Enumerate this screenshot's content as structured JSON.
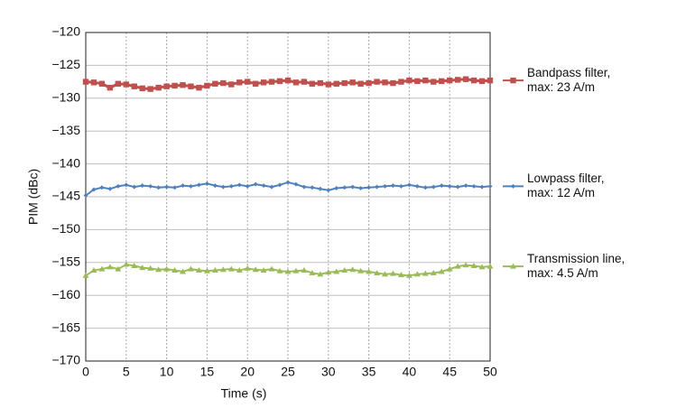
{
  "chart_data": {
    "type": "line",
    "x_label": "Time (s)",
    "y_label": "PIM (dBc)",
    "x": [
      0,
      1,
      2,
      3,
      4,
      5,
      6,
      7,
      8,
      9,
      10,
      11,
      12,
      13,
      14,
      15,
      16,
      17,
      18,
      19,
      20,
      21,
      22,
      23,
      24,
      25,
      26,
      27,
      28,
      29,
      30,
      31,
      32,
      33,
      34,
      35,
      36,
      37,
      38,
      39,
      40,
      41,
      42,
      43,
      44,
      45,
      46,
      47,
      48,
      49,
      50
    ],
    "series": [
      {
        "name": "Bandpass filter, max: 23 A/m",
        "color": "#c0504d",
        "marker": "square",
        "values": [
          -127.5,
          -127.6,
          -127.8,
          -128.4,
          -127.8,
          -127.9,
          -128.2,
          -128.5,
          -128.6,
          -128.4,
          -128.2,
          -128.1,
          -128.0,
          -128.2,
          -128.4,
          -128.1,
          -127.8,
          -127.7,
          -127.9,
          -127.6,
          -127.5,
          -127.8,
          -127.6,
          -127.5,
          -127.4,
          -127.3,
          -127.6,
          -127.5,
          -127.8,
          -127.7,
          -127.9,
          -127.8,
          -127.7,
          -127.6,
          -127.8,
          -127.7,
          -127.5,
          -127.6,
          -127.7,
          -127.5,
          -127.3,
          -127.4,
          -127.3,
          -127.5,
          -127.4,
          -127.3,
          -127.2,
          -127.1,
          -127.3,
          -127.4,
          -127.3
        ]
      },
      {
        "name": "Lowpass filter, max: 12 A/m",
        "color": "#4f81bd",
        "marker": "diamond",
        "values": [
          -144.8,
          -143.9,
          -143.6,
          -143.8,
          -143.4,
          -143.2,
          -143.5,
          -143.3,
          -143.4,
          -143.6,
          -143.5,
          -143.6,
          -143.3,
          -143.4,
          -143.2,
          -143.0,
          -143.3,
          -143.5,
          -143.4,
          -143.2,
          -143.4,
          -143.1,
          -143.3,
          -143.5,
          -143.2,
          -142.8,
          -143.1,
          -143.5,
          -143.6,
          -143.8,
          -144.0,
          -143.7,
          -143.6,
          -143.5,
          -143.7,
          -143.6,
          -143.5,
          -143.4,
          -143.3,
          -143.4,
          -143.2,
          -143.4,
          -143.6,
          -143.5,
          -143.3,
          -143.4,
          -143.5,
          -143.3,
          -143.4,
          -143.5,
          -143.4
        ]
      },
      {
        "name": "Transmission line, max: 4.5 A/m",
        "color": "#9bbb59",
        "marker": "triangle",
        "values": [
          -157.0,
          -156.2,
          -156.0,
          -155.7,
          -156.0,
          -155.3,
          -155.5,
          -155.8,
          -155.9,
          -156.1,
          -156.0,
          -156.2,
          -156.4,
          -156.0,
          -156.2,
          -156.3,
          -156.2,
          -156.1,
          -156.0,
          -156.2,
          -155.9,
          -156.1,
          -156.2,
          -156.0,
          -156.3,
          -156.4,
          -156.3,
          -156.2,
          -156.6,
          -156.8,
          -156.5,
          -156.4,
          -156.2,
          -156.1,
          -156.3,
          -156.4,
          -156.6,
          -156.8,
          -156.7,
          -156.9,
          -157.0,
          -156.8,
          -156.7,
          -156.6,
          -156.4,
          -156.0,
          -155.6,
          -155.4,
          -155.5,
          -155.7,
          -155.6
        ]
      }
    ],
    "xlim": [
      0,
      50
    ],
    "xticks": [
      0,
      5,
      10,
      15,
      20,
      25,
      30,
      35,
      40,
      45,
      50
    ],
    "ylim": [
      -170,
      -120
    ],
    "yticks": [
      {
        "value": -120,
        "label": "−120"
      },
      {
        "value": -125,
        "label": "−125"
      },
      {
        "value": -130,
        "label": "−130"
      },
      {
        "value": -135,
        "label": "−135"
      },
      {
        "value": -140,
        "label": "−140"
      },
      {
        "value": -145,
        "label": "−145"
      },
      {
        "value": -150,
        "label": "−150"
      },
      {
        "value": -155,
        "label": "−155"
      },
      {
        "value": -160,
        "label": "−160"
      },
      {
        "value": -165,
        "label": "−165"
      },
      {
        "value": -170,
        "label": "−170"
      }
    ],
    "grid": true,
    "legend": "right"
  }
}
